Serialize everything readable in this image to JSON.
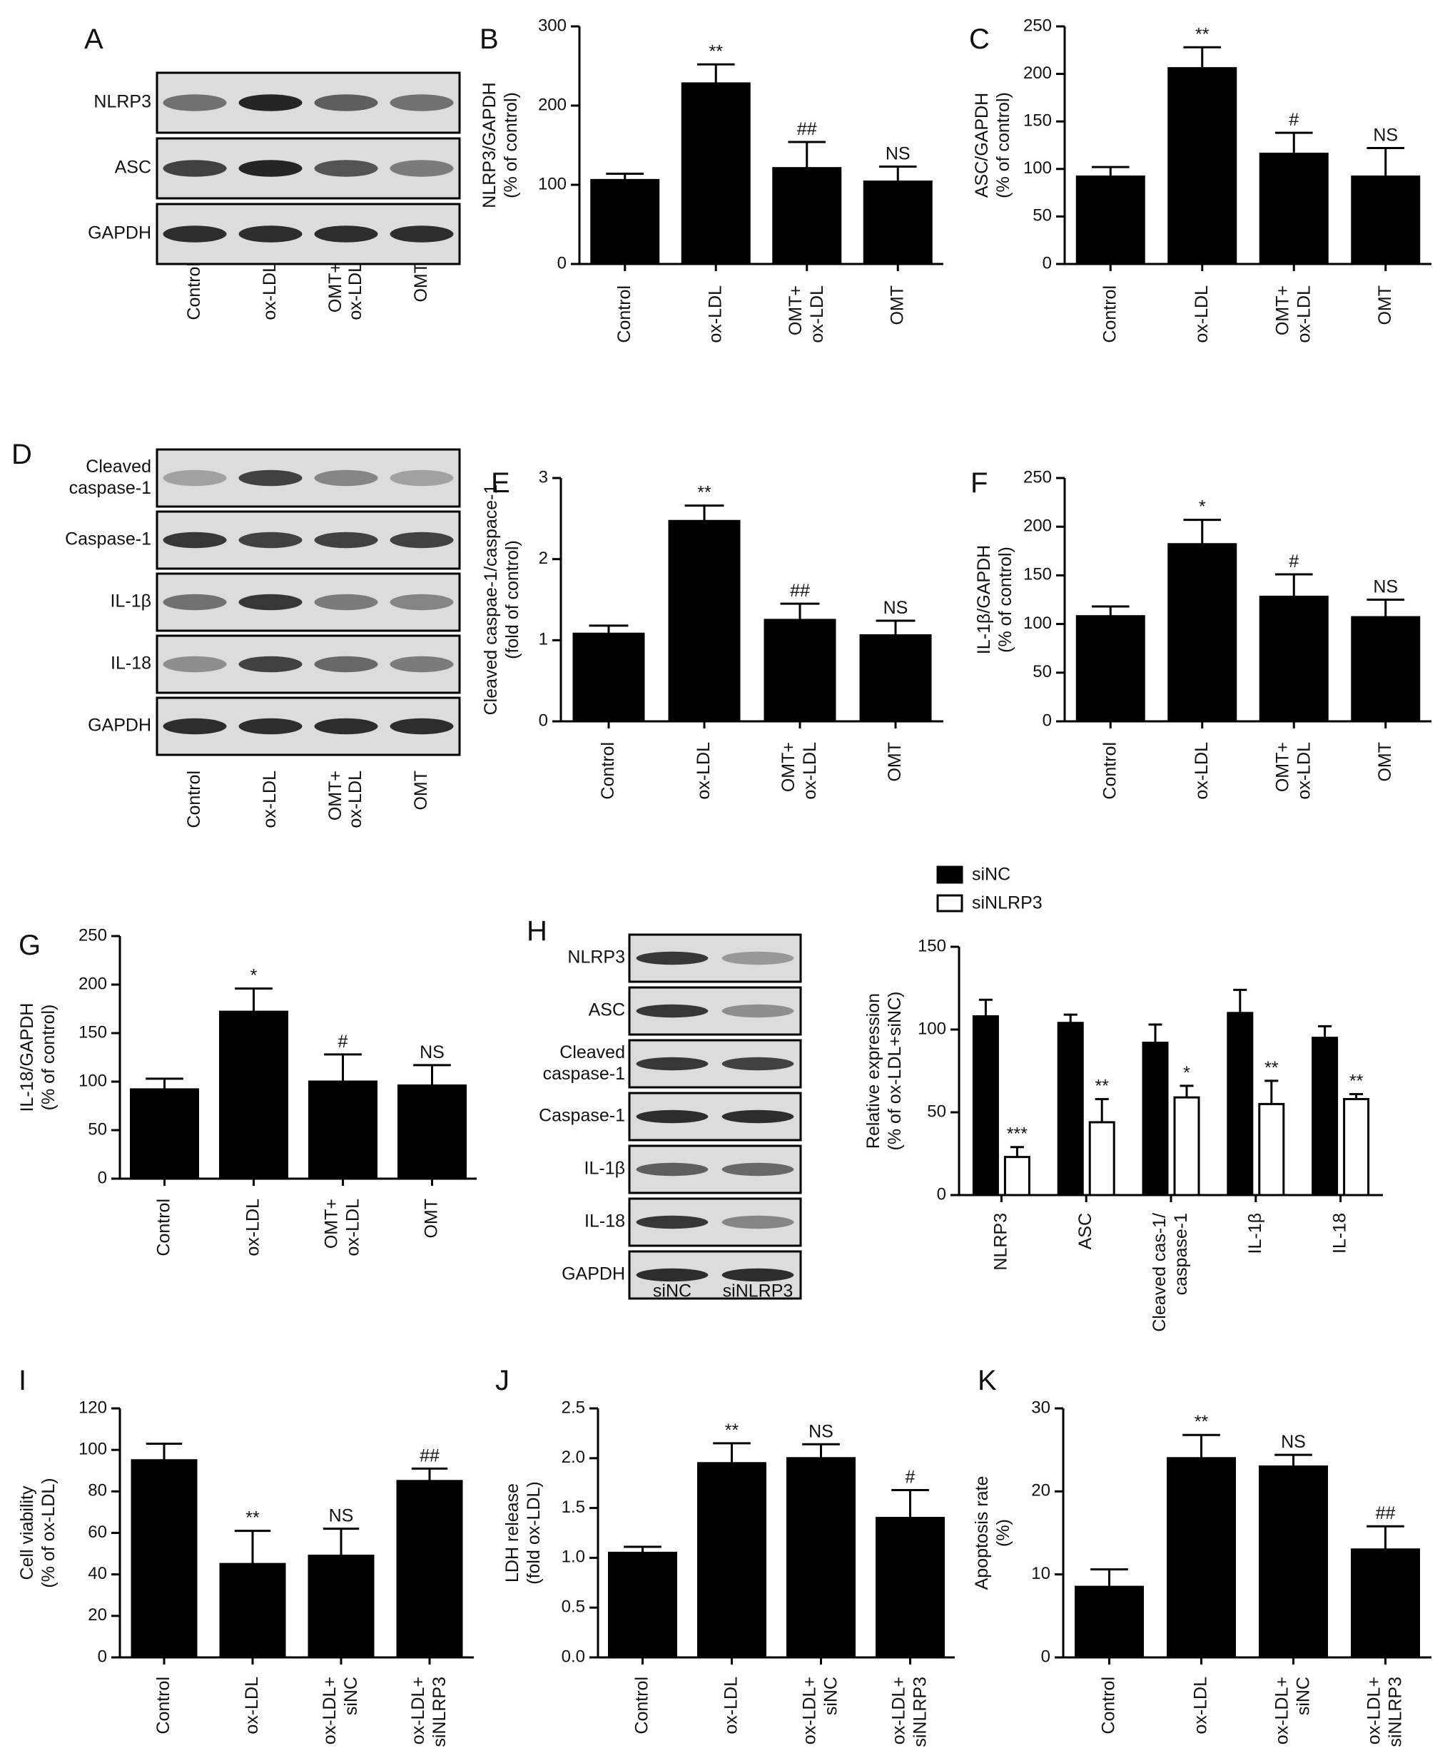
{
  "figure": {
    "blots": [
      {
        "panel": "A",
        "rows": [
          {
            "label": "NLRP3",
            "bands": [
              0.55,
              0.95,
              0.65,
              0.55
            ]
          },
          {
            "label": "ASC",
            "bands": [
              0.8,
              0.95,
              0.7,
              0.5
            ]
          },
          {
            "label": "GAPDH",
            "bands": [
              0.9,
              0.9,
              0.9,
              0.9
            ]
          }
        ],
        "lanes": [
          "Control",
          "ox-LDL",
          "OMT+\nox-LDL",
          "OMT"
        ]
      },
      {
        "panel": "D",
        "rows": [
          {
            "label": "Cleaved\ncaspase-1",
            "bands": [
              0.3,
              0.8,
              0.45,
              0.3
            ]
          },
          {
            "label": "Caspase-1",
            "bands": [
              0.85,
              0.8,
              0.8,
              0.8
            ]
          },
          {
            "label": "IL-1β",
            "bands": [
              0.55,
              0.85,
              0.5,
              0.45
            ]
          },
          {
            "label": "IL-18",
            "bands": [
              0.4,
              0.8,
              0.6,
              0.5
            ]
          },
          {
            "label": "GAPDH",
            "bands": [
              0.9,
              0.9,
              0.9,
              0.9
            ]
          }
        ],
        "lanes": [
          "Control",
          "ox-LDL",
          "OMT+\nox-LDL",
          "OMT"
        ]
      },
      {
        "panel": "H",
        "rows": [
          {
            "label": "NLRP3",
            "bands": [
              0.85,
              0.35
            ]
          },
          {
            "label": "ASC",
            "bands": [
              0.85,
              0.4
            ]
          },
          {
            "label": "Cleaved\ncaspase-1",
            "bands": [
              0.85,
              0.8
            ]
          },
          {
            "label": "Caspase-1",
            "bands": [
              0.9,
              0.9
            ]
          },
          {
            "label": "IL-1β",
            "bands": [
              0.65,
              0.6
            ]
          },
          {
            "label": "IL-18",
            "bands": [
              0.85,
              0.45
            ]
          },
          {
            "label": "GAPDH",
            "bands": [
              0.9,
              0.9
            ]
          }
        ],
        "lanes": [
          "siNC",
          "siNLRP3"
        ]
      }
    ]
  },
  "chart_data": [
    {
      "panel": "B",
      "type": "bar",
      "ylabel": "NLRP3/GAPDH\n(% of control)",
      "ylim": [
        0,
        300
      ],
      "yticks": [
        0,
        100,
        200,
        300
      ],
      "categories": [
        "Control",
        "ox-LDL",
        "OMT+\nox-LDL",
        "OMT"
      ],
      "values": [
        106,
        228,
        121,
        104
      ],
      "errors": [
        8,
        24,
        33,
        19
      ],
      "annotations": [
        "",
        "**",
        "##",
        "NS"
      ]
    },
    {
      "panel": "C",
      "type": "bar",
      "ylabel": "ASC/GAPDH\n(% of control)",
      "ylim": [
        0,
        250
      ],
      "yticks": [
        0,
        50,
        100,
        150,
        200,
        250
      ],
      "categories": [
        "Control",
        "ox-LDL",
        "OMT+\nox-LDL",
        "OMT"
      ],
      "values": [
        92,
        206,
        116,
        92
      ],
      "errors": [
        10,
        22,
        22,
        30
      ],
      "annotations": [
        "",
        "**",
        "#",
        "NS"
      ]
    },
    {
      "panel": "E",
      "type": "bar",
      "ylabel": "Cleaved caspae-1/caspace-1\n(fold of control)",
      "ylim": [
        0,
        3
      ],
      "yticks": [
        0,
        1,
        2,
        3
      ],
      "categories": [
        "Control",
        "ox-LDL",
        "OMT+\nox-LDL",
        "OMT"
      ],
      "values": [
        1.08,
        2.47,
        1.25,
        1.06
      ],
      "errors": [
        0.1,
        0.19,
        0.2,
        0.18
      ],
      "annotations": [
        "",
        "**",
        "##",
        "NS"
      ]
    },
    {
      "panel": "F",
      "type": "bar",
      "ylabel": "IL-1β/GAPDH\n(% of control)",
      "ylim": [
        0,
        250
      ],
      "yticks": [
        0,
        50,
        100,
        150,
        200,
        250
      ],
      "categories": [
        "Control",
        "ox-LDL",
        "OMT+\nox-LDL",
        "OMT"
      ],
      "values": [
        108,
        182,
        128,
        107
      ],
      "errors": [
        10,
        25,
        23,
        18
      ],
      "annotations": [
        "",
        "*",
        "#",
        "NS"
      ]
    },
    {
      "panel": "G",
      "type": "bar",
      "ylabel": "IL-18/GAPDH\n(% of control)",
      "ylim": [
        0,
        250
      ],
      "yticks": [
        0,
        50,
        100,
        150,
        200,
        250
      ],
      "categories": [
        "Control",
        "ox-LDL",
        "OMT+\nox-LDL",
        "OMT"
      ],
      "values": [
        92,
        172,
        100,
        96
      ],
      "errors": [
        11,
        24,
        28,
        21
      ],
      "annotations": [
        "",
        "*",
        "#",
        "NS"
      ]
    },
    {
      "panel": "H",
      "type": "bar",
      "ylabel": "Relative expression\n(% of ox-LDL+siNC)",
      "ylim": [
        0,
        150
      ],
      "yticks": [
        0,
        50,
        100,
        150
      ],
      "categories": [
        "NLRP3",
        "ASC",
        "Cleaved cas-1/\ncaspase-1",
        "IL-1β",
        "IL-18"
      ],
      "legend": "top-left",
      "series": [
        {
          "name": "siNC",
          "color": "#000000",
          "values": [
            108,
            104,
            92,
            110,
            95
          ],
          "errors": [
            10,
            5,
            11,
            14,
            7
          ],
          "annotations": [
            "",
            "",
            "",
            "",
            ""
          ]
        },
        {
          "name": "siNLRP3",
          "color": "#ffffff",
          "values": [
            23,
            44,
            59,
            55,
            58
          ],
          "errors": [
            6,
            14,
            7,
            14,
            3
          ],
          "annotations": [
            "***",
            "**",
            "*",
            "**",
            "**"
          ]
        }
      ]
    },
    {
      "panel": "I",
      "type": "bar",
      "ylabel": "Cell viability\n(% of ox-LDL)",
      "ylim": [
        0,
        120
      ],
      "yticks": [
        0,
        20,
        40,
        60,
        80,
        100,
        120
      ],
      "categories": [
        "Control",
        "ox-LDL",
        "ox-LDL+\nsiNC",
        "ox-LDL+\nsiNLRP3"
      ],
      "values": [
        95,
        45,
        49,
        85
      ],
      "errors": [
        8,
        16,
        13,
        6
      ],
      "annotations": [
        "",
        "**",
        "NS",
        "##"
      ]
    },
    {
      "panel": "J",
      "type": "bar",
      "ylabel": "LDH release\n(fold ox-LDL)",
      "ylim": [
        0,
        2.5
      ],
      "yticks": [
        "0.0",
        "0.5",
        "1.0",
        "1.5",
        "2.0",
        "2.5"
      ],
      "categories": [
        "Control",
        "ox-LDL",
        "ox-LDL+\nsiNC",
        "ox-LDL+\nsiNLRP3"
      ],
      "values": [
        1.05,
        1.95,
        2.0,
        1.4
      ],
      "errors": [
        0.06,
        0.2,
        0.14,
        0.28
      ],
      "annotations": [
        "",
        "**",
        "NS",
        "#"
      ]
    },
    {
      "panel": "K",
      "type": "bar",
      "ylabel": "Apoptosis rate\n(%)",
      "ylim": [
        0,
        30
      ],
      "yticks": [
        0,
        10,
        20,
        30
      ],
      "categories": [
        "Control",
        "ox-LDL",
        "ox-LDL+\nsiNC",
        "ox-LDL+\nsiNLRP3"
      ],
      "values": [
        8.5,
        24,
        23,
        13
      ],
      "errors": [
        2.1,
        2.8,
        1.4,
        2.8
      ],
      "annotations": [
        "",
        "**",
        "NS",
        "##"
      ]
    }
  ]
}
